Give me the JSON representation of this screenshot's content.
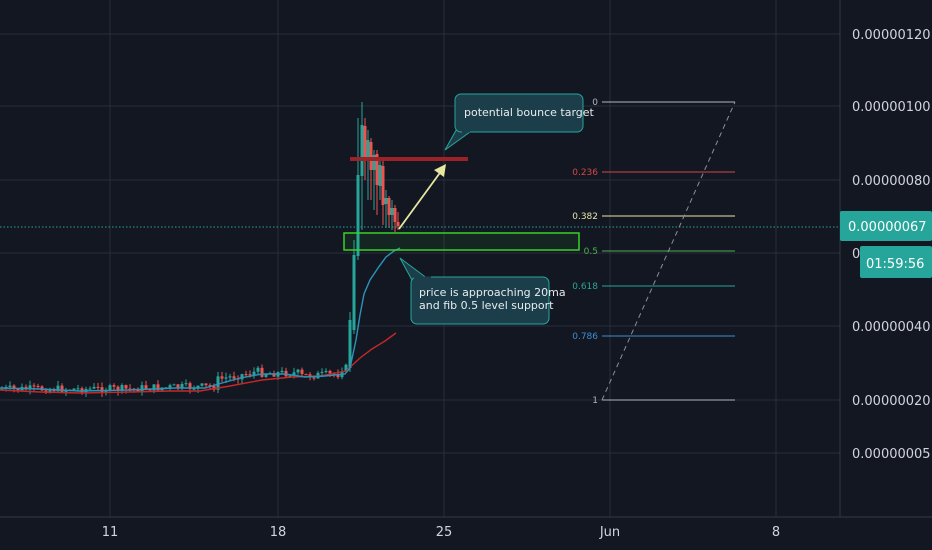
{
  "chart_data": {
    "type": "candlestick",
    "x_ticks": [
      "11",
      "18",
      "25",
      "Jun",
      "8"
    ],
    "y_ticks": [
      "0.00000120",
      "0.00000100",
      "0.00000080",
      "0.00000060",
      "0.00000040",
      "0.00000020",
      "0.00000005"
    ],
    "y_scale": "log",
    "grid": true,
    "current_price": "0.00000067",
    "countdown": "01:59:56",
    "fib_levels": [
      {
        "label": "0",
        "price": 1e-06,
        "color": "#b2b5be"
      },
      {
        "label": "0.236",
        "price": 8.2e-07,
        "color": "#d64545"
      },
      {
        "label": "0.382",
        "price": 7e-07,
        "color": "#e8e4a8"
      },
      {
        "label": "0.5",
        "price": 6.1e-07,
        "color": "#4caf50"
      },
      {
        "label": "0.618",
        "price": 5.2e-07,
        "color": "#26a69a"
      },
      {
        "label": "0.786",
        "price": 4e-07,
        "color": "#3b8ed6"
      },
      {
        "label": "1",
        "price": 2e-07,
        "color": "#b2b5be"
      }
    ],
    "resistance_line": {
      "price": 8.6e-07,
      "color": "#9b2226"
    },
    "support_zone": {
      "price_top": 6.6e-07,
      "price_bottom": 6e-07,
      "color": "#39d12b"
    },
    "annotations": [
      {
        "text": [
          "potential bounce target"
        ]
      },
      {
        "text": [
          "price is approaching 20ma",
          "and fib 0.5 level support"
        ]
      }
    ],
    "colors": {
      "background": "#131722",
      "grid": "#2a2e39",
      "up": "#26a69a",
      "down": "#ef5350",
      "ma_fast": "#2c93b8",
      "ma_slow": "#c62828",
      "price_tag": "#26a69a",
      "arrow": "#e8e7a0"
    }
  }
}
